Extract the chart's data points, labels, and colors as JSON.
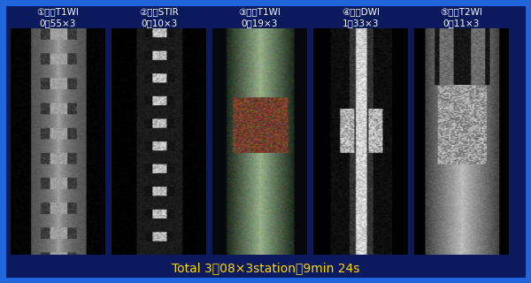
{
  "background_color": "#0a1a5c",
  "border_color": "#2266dd",
  "border_width": 5,
  "panel_labels": [
    "①脏椎T1WI",
    "②脏椎STIR",
    "③全身T1WI",
    "④全身DWI",
    "⑤全身T2WI"
  ],
  "panel_times": [
    "0：55×3",
    "0：10×3",
    "0：19×3",
    "1：33×3",
    "0：11×3"
  ],
  "total_text": "Total 3：08×3station＝9min 24s",
  "total_color": "#ffd700",
  "label_color": "#ffffff",
  "image_bg_colors": [
    "#111111",
    "#111111",
    "#1a2a1a",
    "#111111",
    "#111111"
  ],
  "figsize": [
    6.0,
    3.2
  ],
  "dpi": 100
}
